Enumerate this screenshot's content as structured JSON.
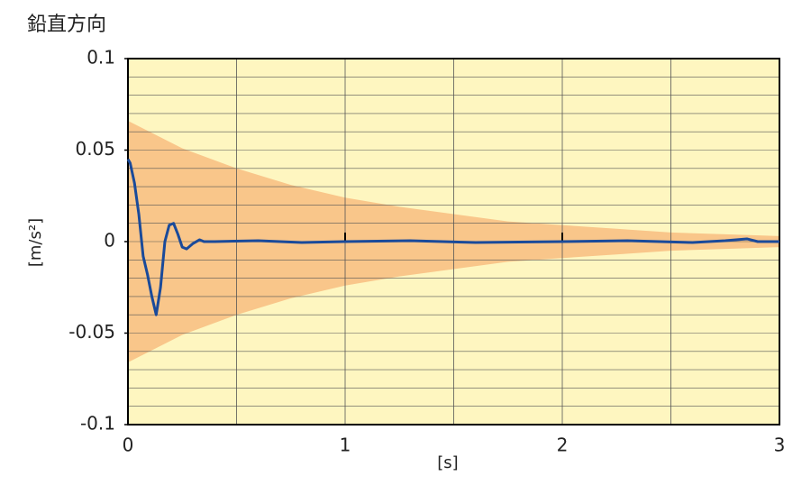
{
  "chart_data": {
    "type": "line",
    "title": "鉛直方向",
    "x_label": "[s]",
    "y_label": "[m/s²]",
    "xlim": [
      0,
      3
    ],
    "xticks": [
      0,
      1,
      2,
      3
    ],
    "ylim": [
      -0.1,
      0.1
    ],
    "yticks": [
      -0.1,
      -0.05,
      0,
      0.05,
      0.1
    ],
    "xgrid": [
      0.5,
      1,
      1.5,
      2,
      2.5
    ],
    "ygrid": [
      -0.09,
      -0.08,
      -0.07,
      -0.06,
      -0.05,
      -0.04,
      -0.03,
      -0.02,
      -0.01,
      0,
      0.01,
      0.02,
      0.03,
      0.04,
      0.05,
      0.06,
      0.07,
      0.08,
      0.09
    ],
    "background": "#fef6c0",
    "band": {
      "color": "#f9c68a",
      "x": [
        0,
        0.25,
        0.5,
        0.75,
        1,
        1.25,
        1.5,
        1.75,
        2,
        2.25,
        2.5,
        2.75,
        3
      ],
      "upper": [
        0.066,
        0.051,
        0.04,
        0.031,
        0.024,
        0.019,
        0.015,
        0.011,
        0.009,
        0.007,
        0.005,
        0.004,
        0.003
      ],
      "lower": [
        -0.066,
        -0.051,
        -0.04,
        -0.031,
        -0.024,
        -0.019,
        -0.015,
        -0.011,
        -0.009,
        -0.007,
        -0.005,
        -0.004,
        -0.003
      ]
    },
    "color": "#1a4a9a",
    "x": [
      0,
      0.01,
      0.03,
      0.05,
      0.07,
      0.09,
      0.11,
      0.13,
      0.15,
      0.17,
      0.19,
      0.21,
      0.23,
      0.25,
      0.27,
      0.3,
      0.33,
      0.35,
      0.4,
      0.6,
      0.8,
      1,
      1.3,
      1.6,
      2,
      2.3,
      2.6,
      2.75,
      2.8,
      2.85,
      2.9,
      3
    ],
    "values": [
      0.045,
      0.043,
      0.032,
      0.015,
      -0.008,
      -0.018,
      -0.03,
      -0.04,
      -0.025,
      0.0,
      0.009,
      0.01,
      0.004,
      -0.003,
      -0.004,
      -0.001,
      0.001,
      0.0,
      0.0,
      0.0005,
      -0.0005,
      0.0,
      0.0005,
      -0.0005,
      0.0,
      0.0005,
      -0.0005,
      0.0005,
      0.001,
      0.0015,
      0.0,
      0.0
    ]
  }
}
